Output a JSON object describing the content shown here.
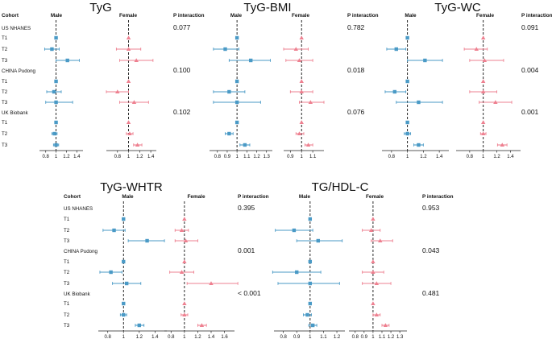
{
  "colors": {
    "male": "#4a9ac6",
    "female": "#ee8090",
    "axis": "#222222"
  },
  "chart_data": [
    {
      "type": "forest",
      "title": "TyG",
      "col_header": "Cohort",
      "panel_headers": [
        "Male",
        "Female"
      ],
      "p_header": "P interaction",
      "rows": [
        {
          "label": "US NHANES",
          "kind": "cohort",
          "p": "0.077"
        },
        {
          "label": "T1",
          "male": [
            1.0,
            1.0,
            1.0
          ],
          "female": [
            1.0,
            1.0,
            1.0
          ]
        },
        {
          "label": "T2",
          "male": [
            0.92,
            0.78,
            1.06
          ],
          "female": [
            1.0,
            0.78,
            1.22
          ]
        },
        {
          "label": "T3",
          "male": [
            1.22,
            1.0,
            1.45
          ],
          "female": [
            1.14,
            0.84,
            1.44
          ]
        },
        {
          "label": "CHINA Pudong",
          "kind": "cohort",
          "p": "0.100"
        },
        {
          "label": "T1",
          "male": [
            1.0,
            1.0,
            1.0
          ],
          "female": [
            1.0,
            1.0,
            1.0
          ]
        },
        {
          "label": "T2",
          "male": [
            0.96,
            0.82,
            1.1
          ],
          "female": [
            0.8,
            0.6,
            1.0
          ]
        },
        {
          "label": "T3",
          "male": [
            1.0,
            0.8,
            1.32
          ],
          "female": [
            1.1,
            0.84,
            1.36
          ]
        },
        {
          "label": "UK Biobank",
          "kind": "cohort",
          "p": "0.102"
        },
        {
          "label": "T1",
          "male": [
            1.0,
            1.0,
            1.0
          ],
          "female": [
            1.0,
            1.0,
            1.0
          ]
        },
        {
          "label": "T2",
          "male": [
            0.97,
            0.92,
            1.02
          ],
          "female": [
            1.02,
            0.96,
            1.08
          ]
        },
        {
          "label": "T3",
          "male": [
            1.0,
            0.95,
            1.05
          ],
          "female": [
            1.16,
            1.09,
            1.24
          ]
        }
      ],
      "male_axis": {
        "ticks": [
          "0.8",
          "1",
          "1.2",
          "1.4"
        ],
        "range": [
          0.68,
          1.52
        ]
      },
      "female_axis": {
        "ticks": [
          "0.8",
          "1",
          "1.2",
          "1.4"
        ],
        "range": [
          0.6,
          1.5
        ]
      }
    },
    {
      "type": "forest",
      "title": "TyG-BMI",
      "col_header": "",
      "panel_headers": [
        "Male",
        "Female"
      ],
      "p_header": "P interaction",
      "rows": [
        {
          "label": "",
          "kind": "cohort",
          "p": "0.782"
        },
        {
          "label": "",
          "male": [
            1.0,
            1.0,
            1.0
          ],
          "female": [
            1.0,
            1.0,
            1.0
          ]
        },
        {
          "label": "",
          "male": [
            0.88,
            0.76,
            1.02
          ],
          "female": [
            0.95,
            0.84,
            1.06
          ]
        },
        {
          "label": "",
          "male": [
            1.14,
            0.92,
            1.34
          ],
          "female": [
            0.98,
            0.86,
            1.1
          ]
        },
        {
          "label": "",
          "kind": "cohort",
          "p": "0.018"
        },
        {
          "label": "",
          "male": [
            1.0,
            1.0,
            1.0
          ],
          "female": [
            1.0,
            1.0,
            1.0
          ]
        },
        {
          "label": "",
          "male": [
            0.92,
            0.76,
            1.08
          ],
          "female": [
            1.0,
            0.9,
            1.1
          ]
        },
        {
          "label": "",
          "male": [
            1.0,
            0.76,
            1.24
          ],
          "female": [
            1.08,
            0.98,
            1.2
          ]
        },
        {
          "label": "",
          "kind": "cohort",
          "p": "0.076"
        },
        {
          "label": "",
          "male": [
            1.0,
            1.0,
            1.0
          ],
          "female": [
            1.0,
            1.0,
            1.0
          ]
        },
        {
          "label": "",
          "male": [
            0.92,
            0.88,
            0.96
          ],
          "female": [
            0.98,
            0.95,
            1.02
          ]
        },
        {
          "label": "",
          "male": [
            1.08,
            1.03,
            1.13
          ],
          "female": [
            1.06,
            1.03,
            1.1
          ]
        }
      ],
      "male_axis": {
        "ticks": [
          "0.8",
          "0.9",
          "1",
          "1.1",
          "1.2",
          "1.3"
        ],
        "range": [
          0.72,
          1.36
        ]
      },
      "female_axis": {
        "ticks": [
          "0.9",
          "1",
          "1.1"
        ],
        "range": [
          0.84,
          1.2
        ]
      }
    },
    {
      "type": "forest",
      "title": "TyG-WC",
      "col_header": "",
      "panel_headers": [
        "Male",
        "Female"
      ],
      "p_header": "P interaction",
      "rows": [
        {
          "label": "",
          "kind": "cohort",
          "p": "0.091"
        },
        {
          "label": "",
          "male": [
            1.0,
            1.0,
            1.0
          ],
          "female": [
            1.0,
            1.0,
            1.0
          ]
        },
        {
          "label": "",
          "male": [
            0.86,
            0.74,
            0.98
          ],
          "female": [
            0.9,
            0.72,
            1.06
          ]
        },
        {
          "label": "",
          "male": [
            1.22,
            1.0,
            1.44
          ],
          "female": [
            1.02,
            0.8,
            1.3
          ]
        },
        {
          "label": "",
          "kind": "cohort",
          "p": "0.004"
        },
        {
          "label": "",
          "male": [
            1.0,
            1.0,
            1.0
          ],
          "female": [
            1.0,
            1.0,
            1.0
          ]
        },
        {
          "label": "",
          "male": [
            0.84,
            0.72,
            0.98
          ],
          "female": [
            1.0,
            0.8,
            1.2
          ]
        },
        {
          "label": "",
          "male": [
            1.14,
            0.86,
            1.44
          ],
          "female": [
            1.18,
            0.94,
            1.42
          ]
        },
        {
          "label": "",
          "kind": "cohort",
          "p": "0.001"
        },
        {
          "label": "",
          "male": [
            1.0,
            1.0,
            1.0
          ],
          "female": [
            1.0,
            1.0,
            1.0
          ]
        },
        {
          "label": "",
          "male": [
            1.0,
            0.96,
            1.04
          ],
          "female": [
            1.0,
            0.96,
            1.04
          ]
        },
        {
          "label": "",
          "male": [
            1.14,
            1.08,
            1.2
          ],
          "female": [
            1.28,
            1.21,
            1.35
          ]
        }
      ],
      "male_axis": {
        "ticks": [
          "0.8",
          "1",
          "1.2",
          "1.4"
        ],
        "range": [
          0.68,
          1.52
        ]
      },
      "female_axis": {
        "ticks": [
          "0.8",
          "1",
          "1.2",
          "1.4"
        ],
        "range": [
          0.6,
          1.55
        ]
      }
    },
    {
      "type": "forest",
      "title": "TyG-WHTR",
      "col_header": "Cohort",
      "panel_headers": [
        "Male",
        "Female"
      ],
      "p_header": "P interaction",
      "rows": [
        {
          "label": "US NHANES",
          "kind": "cohort",
          "p": "0.395"
        },
        {
          "label": "T1",
          "male": [
            1.0,
            1.0,
            1.0
          ],
          "female": [
            1.0,
            1.0,
            1.0
          ]
        },
        {
          "label": "T2",
          "male": [
            0.88,
            0.74,
            1.02
          ],
          "female": [
            0.96,
            0.86,
            1.06
          ]
        },
        {
          "label": "T3",
          "male": [
            1.3,
            1.06,
            1.52
          ],
          "female": [
            1.02,
            0.86,
            1.2
          ]
        },
        {
          "label": "CHINA Pudong",
          "kind": "cohort",
          "p": "0.001"
        },
        {
          "label": "T1",
          "male": [
            1.0,
            1.0,
            1.0
          ],
          "female": [
            1.0,
            1.0,
            1.0
          ]
        },
        {
          "label": "T2",
          "male": [
            0.84,
            0.7,
            0.98
          ],
          "female": [
            0.96,
            0.78,
            1.14
          ]
        },
        {
          "label": "T3",
          "male": [
            1.04,
            0.86,
            1.22
          ],
          "female": [
            1.4,
            1.04,
            1.8
          ]
        },
        {
          "label": "UK Biobank",
          "kind": "cohort",
          "p": "< 0.001"
        },
        {
          "label": "T1",
          "male": [
            1.0,
            1.0,
            1.0
          ],
          "female": [
            1.0,
            1.0,
            1.0
          ]
        },
        {
          "label": "T2",
          "male": [
            1.0,
            0.96,
            1.04
          ],
          "female": [
            1.0,
            0.95,
            1.05
          ]
        },
        {
          "label": "T3",
          "male": [
            1.2,
            1.15,
            1.26
          ],
          "female": [
            1.26,
            1.2,
            1.33
          ]
        }
      ],
      "male_axis": {
        "ticks": [
          "0.8",
          "1",
          "1.2",
          "1.4"
        ],
        "range": [
          0.68,
          1.55
        ]
      },
      "female_axis": {
        "ticks": [
          "0.8",
          "1",
          "1.2",
          "1.4",
          "1.6"
        ],
        "range": [
          0.7,
          1.75
        ]
      }
    },
    {
      "type": "forest",
      "title": "TG/HDL-C",
      "col_header": "",
      "panel_headers": [
        "Male",
        "Female"
      ],
      "p_header": "P interaction",
      "rows": [
        {
          "label": "",
          "kind": "cohort",
          "p": "0.953"
        },
        {
          "label": "",
          "male": [
            1.0,
            1.0,
            1.0
          ],
          "female": [
            1.0,
            1.0,
            1.0
          ]
        },
        {
          "label": "",
          "male": [
            0.88,
            0.74,
            1.02
          ],
          "female": [
            0.98,
            0.88,
            1.08
          ]
        },
        {
          "label": "",
          "male": [
            1.06,
            0.9,
            1.24
          ],
          "female": [
            1.08,
            0.98,
            1.22
          ]
        },
        {
          "label": "",
          "kind": "cohort",
          "p": "0.043"
        },
        {
          "label": "",
          "male": [
            1.0,
            1.0,
            1.0
          ],
          "female": [
            1.0,
            1.0,
            1.0
          ]
        },
        {
          "label": "",
          "male": [
            0.9,
            0.72,
            1.08
          ],
          "female": [
            1.0,
            0.88,
            1.12
          ]
        },
        {
          "label": "",
          "male": [
            1.0,
            0.76,
            1.22
          ],
          "female": [
            1.04,
            0.88,
            1.2
          ]
        },
        {
          "label": "",
          "kind": "cohort",
          "p": "0.481"
        },
        {
          "label": "",
          "male": [
            1.0,
            1.0,
            1.0
          ],
          "female": [
            1.0,
            1.0,
            1.0
          ]
        },
        {
          "label": "",
          "male": [
            0.98,
            0.95,
            1.01
          ],
          "female": [
            1.04,
            1.0,
            1.08
          ]
        },
        {
          "label": "",
          "male": [
            1.02,
            0.99,
            1.05
          ],
          "female": [
            1.14,
            1.1,
            1.18
          ]
        }
      ],
      "male_axis": {
        "ticks": [
          "0.8",
          "0.9",
          "1",
          "1.1",
          "1.2"
        ],
        "range": [
          0.73,
          1.26
        ]
      },
      "female_axis": {
        "ticks": [
          "0.8",
          "0.9",
          "1",
          "1.1",
          "1.2",
          "1.3"
        ],
        "range": [
          0.73,
          1.38
        ]
      }
    }
  ]
}
